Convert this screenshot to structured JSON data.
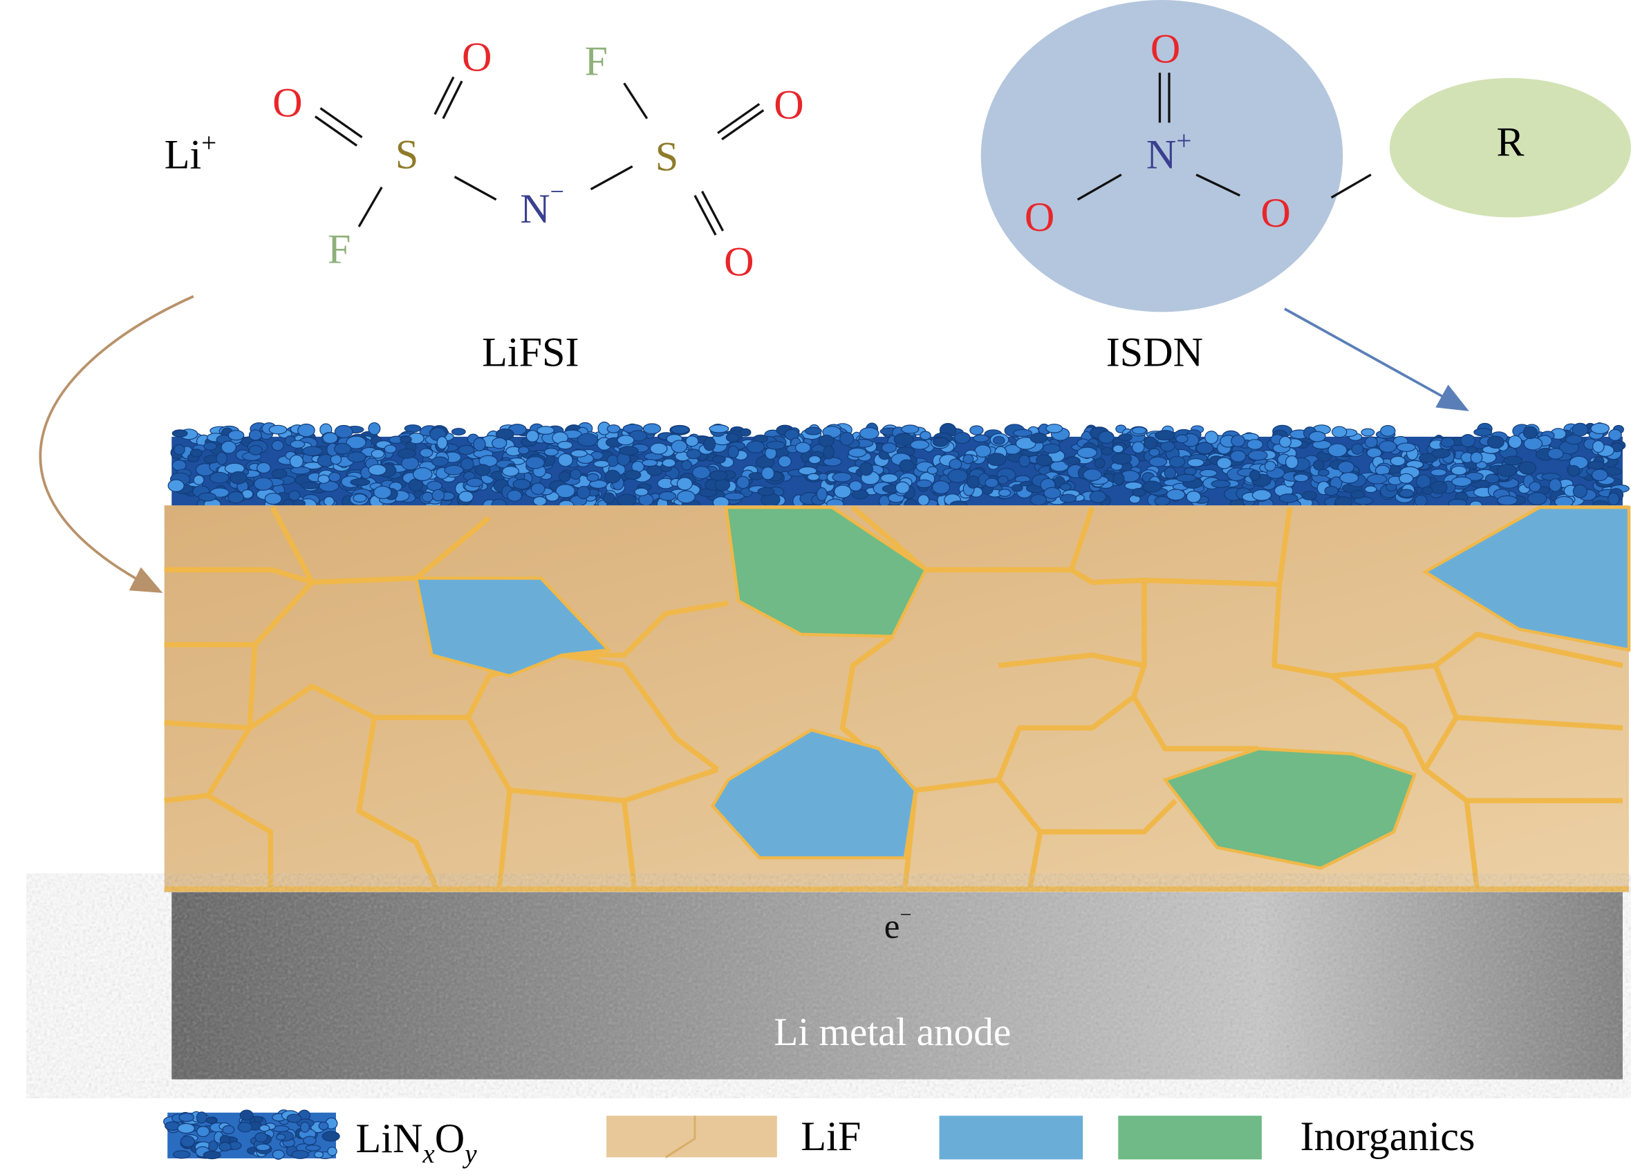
{
  "lifsi": {
    "cation": "Li",
    "cation_charge": "+",
    "atoms": {
      "o1": "O",
      "o2": "O",
      "o3": "O",
      "o4": "O",
      "s1": "S",
      "s2": "S",
      "f1": "F",
      "f2": "F",
      "n": "N",
      "n_charge": "−"
    },
    "label": "LiFSI"
  },
  "isdn": {
    "atoms": {
      "o_top": "O",
      "o_left": "O",
      "o_right": "O",
      "n": "N",
      "n_charge": "+"
    },
    "r_group": "R",
    "label": "ISDN"
  },
  "layers": {
    "electron": "e",
    "electron_charge": "−",
    "anode_label": "Li metal anode"
  },
  "legend": {
    "linxoy": {
      "base": "LiN",
      "sub1": "x",
      "mid": "O",
      "sub2": "y"
    },
    "lif": "LiF",
    "inorganics": "Inorganics"
  },
  "colors": {
    "oxygen": "#e8262a",
    "sulfur": "#8f7a2a",
    "fluorine": "#8fb07a",
    "nitrogen": "#3a3f8f",
    "isdn_circle": "#b4c6dd",
    "r_ellipse": "#d2e2b4",
    "lifsi_arrow": "#b8926a",
    "isdn_arrow": "#5a7fb8",
    "linxoy": "#2a6cc0",
    "lif": "#e2c08e",
    "lif_border": "#f0b84a",
    "inorganic_blue": "#6aaed8",
    "inorganic_green": "#6fba86",
    "anode": "#8a8a8a"
  }
}
